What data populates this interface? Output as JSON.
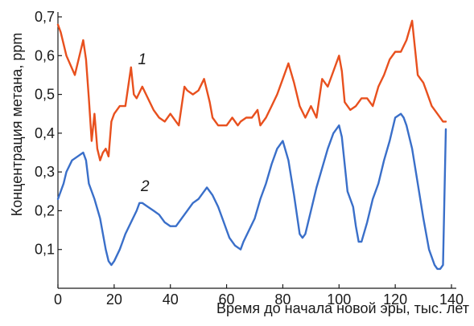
{
  "chart_data": {
    "type": "line",
    "title": "",
    "xlabel": "Время до начала новой эры, тыс. лет",
    "ylabel": "Концентрация метана, ppm",
    "xlim": [
      0,
      140
    ],
    "ylim": [
      0.0,
      0.7
    ],
    "grid": false,
    "x_ticks": [
      0,
      20,
      40,
      60,
      80,
      100,
      120,
      140
    ],
    "x_tick_labels": [
      "0",
      "20",
      "40",
      "60",
      "80",
      "100",
      "120",
      "140"
    ],
    "y_ticks": [
      0.1,
      0.2,
      0.3,
      0.4,
      0.5,
      0.6,
      0.7
    ],
    "y_tick_labels": [
      "0,1",
      "0,2",
      "0,3",
      "0,4",
      "0,5",
      "0,6",
      "0,7"
    ],
    "series": [
      {
        "name": "1",
        "color": "#e8501e",
        "x": [
          0,
          1,
          3,
          6,
          9,
          10,
          11,
          12,
          13,
          14,
          15,
          16,
          17,
          18,
          19,
          20,
          22,
          24,
          26,
          27,
          28,
          30,
          32,
          34,
          36,
          38,
          40,
          42,
          43,
          45,
          46,
          48,
          50,
          52,
          54,
          55,
          57,
          58,
          60,
          62,
          64,
          65,
          67,
          69,
          71,
          72,
          74,
          76,
          78,
          80,
          82,
          84,
          86,
          88,
          90,
          92,
          94,
          96,
          98,
          100,
          101,
          102,
          104,
          106,
          108,
          110,
          112,
          114,
          116,
          118,
          120,
          122,
          124,
          126,
          128,
          129,
          130,
          131,
          133,
          135,
          137,
          138
        ],
        "values": [
          0.68,
          0.66,
          0.6,
          0.55,
          0.64,
          0.59,
          0.49,
          0.38,
          0.45,
          0.36,
          0.33,
          0.35,
          0.36,
          0.34,
          0.43,
          0.45,
          0.47,
          0.47,
          0.57,
          0.5,
          0.49,
          0.52,
          0.49,
          0.46,
          0.44,
          0.43,
          0.45,
          0.43,
          0.42,
          0.52,
          0.51,
          0.5,
          0.51,
          0.54,
          0.48,
          0.44,
          0.42,
          0.42,
          0.42,
          0.44,
          0.42,
          0.43,
          0.44,
          0.44,
          0.46,
          0.42,
          0.44,
          0.47,
          0.5,
          0.54,
          0.58,
          0.53,
          0.47,
          0.44,
          0.47,
          0.44,
          0.54,
          0.52,
          0.56,
          0.6,
          0.56,
          0.48,
          0.46,
          0.47,
          0.49,
          0.49,
          0.47,
          0.52,
          0.55,
          0.59,
          0.61,
          0.61,
          0.64,
          0.69,
          0.55,
          0.54,
          0.53,
          0.51,
          0.47,
          0.45,
          0.43,
          0.43
        ]
      },
      {
        "name": "2",
        "color": "#3a6fc9",
        "x": [
          0,
          2,
          3,
          5,
          7,
          9,
          10,
          11,
          13,
          15,
          17,
          18,
          19,
          20,
          22,
          23,
          24,
          26,
          28,
          29,
          30,
          32,
          34,
          36,
          38,
          40,
          42,
          44,
          46,
          48,
          50,
          52,
          53,
          55,
          57,
          59,
          60,
          61,
          63,
          65,
          66,
          68,
          70,
          72,
          74,
          76,
          78,
          80,
          82,
          84,
          86,
          87,
          88,
          90,
          92,
          94,
          96,
          98,
          100,
          101,
          103,
          105,
          106,
          107,
          108,
          110,
          112,
          114,
          116,
          118,
          120,
          122,
          123,
          124,
          126,
          128,
          130,
          132,
          134,
          135,
          136,
          137,
          138
        ],
        "values": [
          0.23,
          0.27,
          0.3,
          0.33,
          0.34,
          0.35,
          0.33,
          0.27,
          0.23,
          0.18,
          0.1,
          0.07,
          0.06,
          0.07,
          0.1,
          0.12,
          0.14,
          0.17,
          0.2,
          0.22,
          0.22,
          0.21,
          0.2,
          0.19,
          0.17,
          0.16,
          0.16,
          0.18,
          0.2,
          0.22,
          0.23,
          0.25,
          0.26,
          0.24,
          0.21,
          0.17,
          0.15,
          0.13,
          0.11,
          0.1,
          0.12,
          0.15,
          0.18,
          0.23,
          0.27,
          0.32,
          0.36,
          0.38,
          0.33,
          0.24,
          0.14,
          0.13,
          0.14,
          0.2,
          0.26,
          0.31,
          0.36,
          0.4,
          0.42,
          0.39,
          0.25,
          0.21,
          0.16,
          0.12,
          0.12,
          0.17,
          0.23,
          0.27,
          0.33,
          0.38,
          0.44,
          0.45,
          0.44,
          0.42,
          0.36,
          0.27,
          0.18,
          0.1,
          0.06,
          0.05,
          0.05,
          0.06,
          0.41
        ]
      }
    ],
    "series_labels": [
      {
        "text": "1",
        "x": 30,
        "y": 0.578
      },
      {
        "text": "2",
        "x": 31,
        "y": 0.251
      }
    ]
  }
}
